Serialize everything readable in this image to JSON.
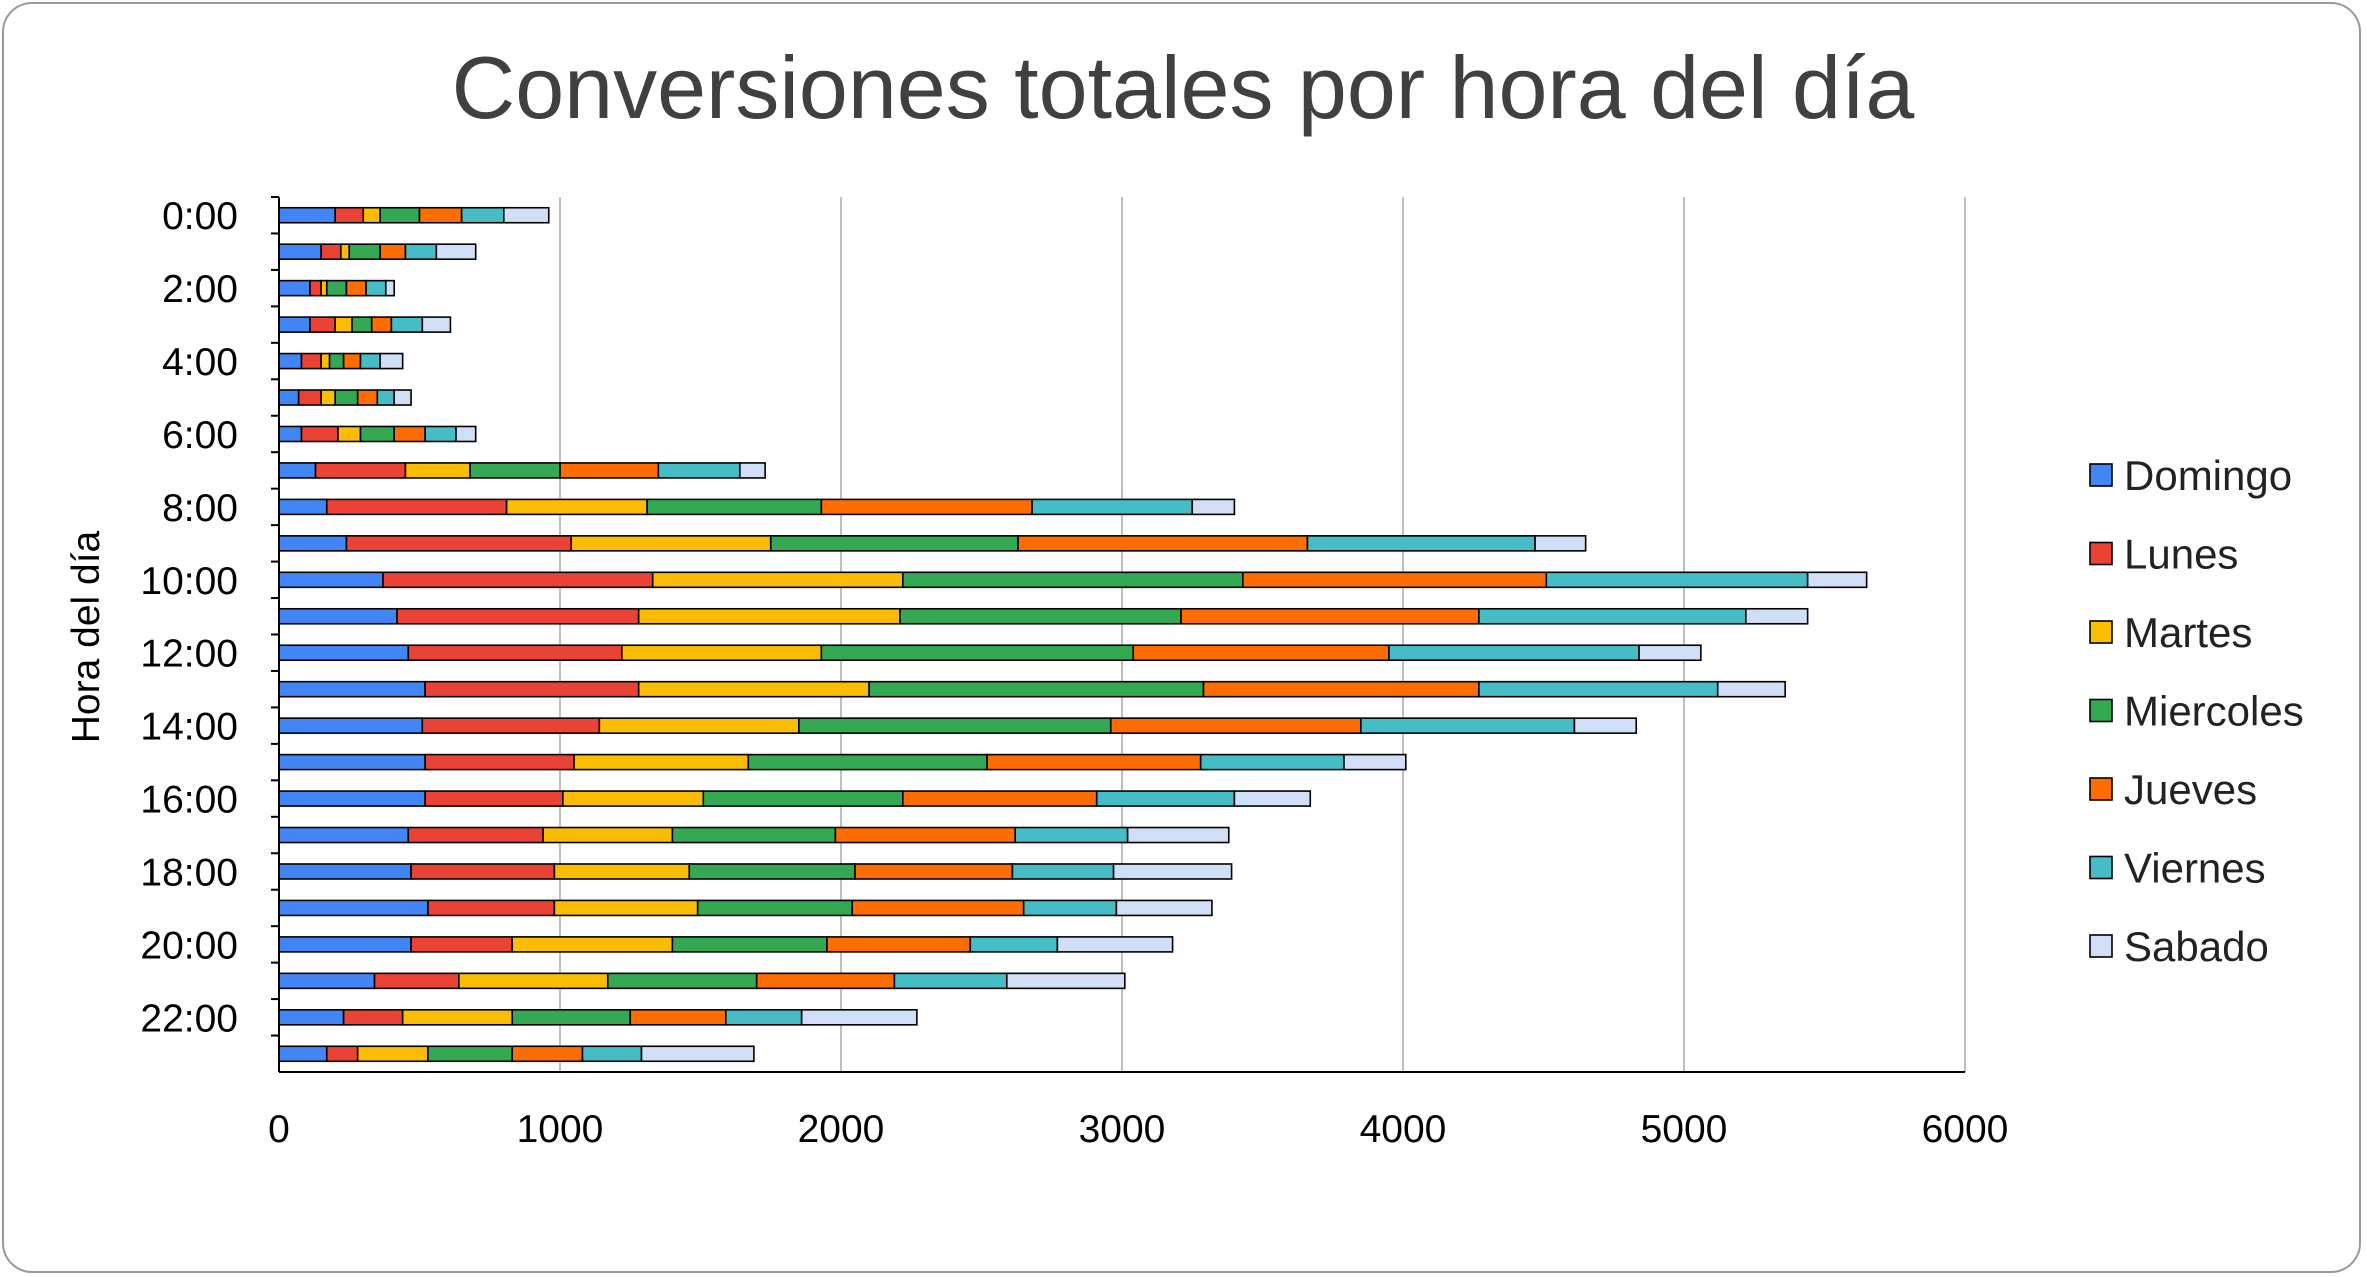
{
  "chart_data": {
    "type": "bar",
    "orientation": "horizontal",
    "stacked": true,
    "title": "Conversiones totales por hora del día",
    "xlabel": "",
    "ylabel": "Hora del día",
    "xlim": [
      0,
      6000
    ],
    "xticks": [
      0,
      1000,
      2000,
      3000,
      4000,
      5000,
      6000
    ],
    "grid": "vertical",
    "legend_position": "right",
    "categories": [
      "0:00",
      "1:00",
      "2:00",
      "3:00",
      "4:00",
      "5:00",
      "6:00",
      "7:00",
      "8:00",
      "9:00",
      "10:00",
      "11:00",
      "12:00",
      "13:00",
      "14:00",
      "15:00",
      "16:00",
      "17:00",
      "18:00",
      "19:00",
      "20:00",
      "21:00",
      "22:00",
      "23:00"
    ],
    "visible_category_labels": [
      "0:00",
      "2:00",
      "4:00",
      "6:00",
      "8:00",
      "10:00",
      "12:00",
      "14:00",
      "16:00",
      "18:00",
      "20:00",
      "22:00"
    ],
    "series": [
      {
        "name": "Domingo",
        "color": "#4285f4",
        "values": [
          200,
          150,
          110,
          110,
          80,
          70,
          80,
          130,
          170,
          240,
          370,
          420,
          460,
          520,
          510,
          520,
          520,
          460,
          470,
          530,
          470,
          340,
          230,
          170
        ]
      },
      {
        "name": "Lunes",
        "color": "#ea4335",
        "values": [
          100,
          70,
          40,
          90,
          70,
          80,
          130,
          320,
          640,
          800,
          960,
          860,
          760,
          760,
          630,
          530,
          490,
          480,
          510,
          450,
          360,
          300,
          210,
          110
        ]
      },
      {
        "name": "Martes",
        "color": "#fbbc04",
        "values": [
          60,
          30,
          20,
          60,
          30,
          50,
          80,
          230,
          500,
          710,
          890,
          930,
          710,
          820,
          710,
          620,
          500,
          460,
          480,
          510,
          570,
          530,
          390,
          250
        ]
      },
      {
        "name": "Miercoles",
        "color": "#34a853",
        "values": [
          140,
          110,
          70,
          70,
          50,
          80,
          120,
          320,
          620,
          880,
          1210,
          1000,
          1110,
          1190,
          1110,
          850,
          710,
          580,
          590,
          550,
          550,
          530,
          420,
          300
        ]
      },
      {
        "name": "Jueves",
        "color": "#ff6d01",
        "values": [
          150,
          90,
          70,
          70,
          60,
          70,
          110,
          350,
          750,
          1030,
          1080,
          1060,
          910,
          980,
          890,
          760,
          690,
          640,
          560,
          610,
          510,
          490,
          340,
          250
        ]
      },
      {
        "name": "Viernes",
        "color": "#46bdc6",
        "values": [
          150,
          110,
          70,
          110,
          70,
          60,
          110,
          290,
          570,
          810,
          930,
          950,
          890,
          850,
          760,
          510,
          490,
          400,
          360,
          330,
          310,
          400,
          270,
          210
        ]
      },
      {
        "name": "Sabado",
        "color": "#d0dff5",
        "values": [
          160,
          140,
          30,
          100,
          80,
          60,
          70,
          90,
          150,
          180,
          210,
          220,
          220,
          240,
          220,
          220,
          270,
          360,
          420,
          340,
          410,
          420,
          410,
          400
        ]
      }
    ]
  }
}
